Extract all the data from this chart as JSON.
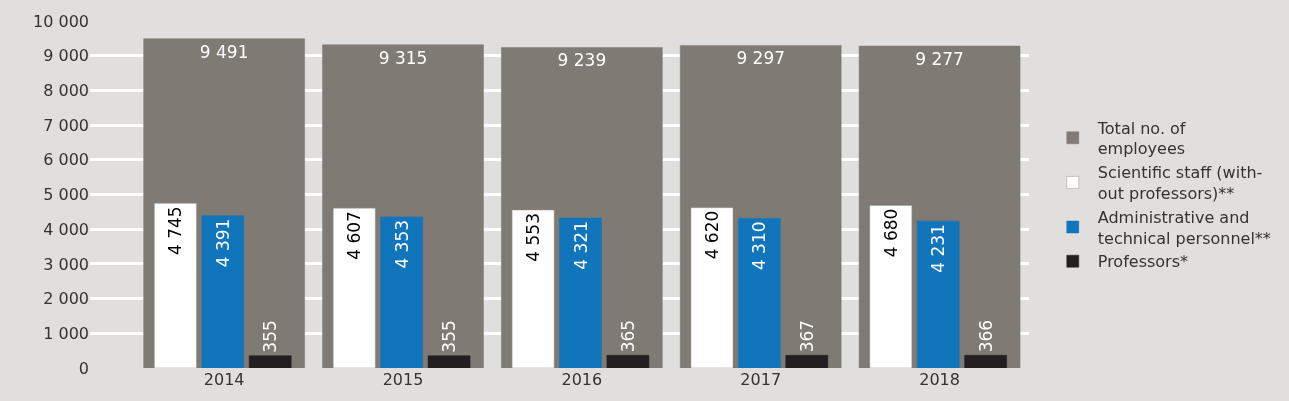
{
  "chart_data": {
    "type": "bar",
    "categories": [
      "2014",
      "2015",
      "2016",
      "2017",
      "2018"
    ],
    "series": [
      {
        "name": "Total no. of\nemployees",
        "color": "#7f7a74",
        "values": [
          9491,
          9315,
          9239,
          9297,
          9277
        ],
        "value_labels": [
          "9 491",
          "9 315",
          "9 239",
          "9 297",
          "9 277"
        ]
      },
      {
        "name": "Scientific staff (with-\nout professors)**",
        "color": "#ffffff",
        "values": [
          4745,
          4607,
          4553,
          4620,
          4680
        ],
        "value_labels": [
          "4 745",
          "4 607",
          "4 553",
          "4 620",
          "4 680"
        ]
      },
      {
        "name": "Administrative and\ntechnical personnel**",
        "color": "#1075bb",
        "values": [
          4391,
          4353,
          4321,
          4310,
          4231
        ],
        "value_labels": [
          "4 391",
          "4 353",
          "4 321",
          "4 310",
          "4 231"
        ]
      },
      {
        "name": "Professors*",
        "color": "#231f20",
        "values": [
          355,
          355,
          365,
          367,
          366
        ],
        "value_labels": [
          "355",
          "355",
          "365",
          "367",
          "366"
        ]
      }
    ],
    "ylim": [
      0,
      10000
    ],
    "yticks": [
      {
        "value": 0,
        "label": "0"
      },
      {
        "value": 1000,
        "label": "1 000"
      },
      {
        "value": 2000,
        "label": "2 000"
      },
      {
        "value": 3000,
        "label": "3 000"
      },
      {
        "value": 4000,
        "label": "4 000"
      },
      {
        "value": 5000,
        "label": "5 000"
      },
      {
        "value": 6000,
        "label": "6 000"
      },
      {
        "value": 7000,
        "label": "7 000"
      },
      {
        "value": 8000,
        "label": "8 000"
      },
      {
        "value": 9000,
        "label": "9 000"
      },
      {
        "value": 10000,
        "label": "10 000"
      }
    ],
    "grid": "y",
    "legend": "right"
  }
}
